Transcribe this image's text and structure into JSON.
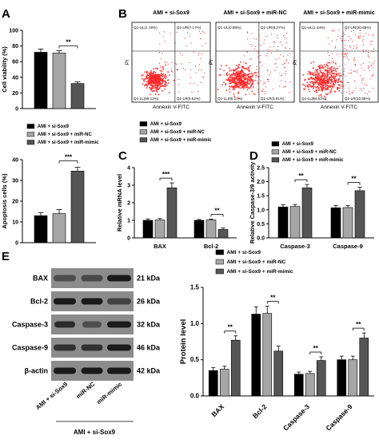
{
  "colors": {
    "black": "#000000",
    "gray": "#a6a6a6",
    "dark": "#555555",
    "flow": "#ff2a2a",
    "band": "#1a1a1a",
    "blot_bg": "#8c8c8c"
  },
  "legend_labels": [
    "AMI + si-Sox9",
    "AMI + si-Sox9 + miR-NC",
    "AMI + si-Sox9 + miR-mimic"
  ],
  "panels": {
    "A1": {
      "letter": "A",
      "chart_data": {
        "type": "bar",
        "ylabel": "Cell viability (%)",
        "ylim": [
          0,
          100
        ],
        "yticks": [
          0,
          20,
          40,
          60,
          80,
          100
        ],
        "series": [
          {
            "name": "AMI + si-Sox9",
            "values": [
              72
            ],
            "err": [
              4
            ]
          },
          {
            "name": "AMI + si-Sox9 + miR-NC",
            "values": [
              71
            ],
            "err": [
              3
            ]
          },
          {
            "name": "AMI + si-Sox9 + miR-mimic",
            "values": [
              32
            ],
            "err": [
              2
            ]
          }
        ],
        "sig": [
          {
            "from": 1,
            "to": 2,
            "label": "**"
          }
        ]
      }
    },
    "A2": {
      "chart_data": {
        "type": "bar",
        "ylabel": "Apoptosis cells (%)",
        "ylim": [
          0,
          40
        ],
        "yticks": [
          0,
          10,
          20,
          30,
          40
        ],
        "series": [
          {
            "name": "AMI + si-Sox9",
            "values": [
              13
            ],
            "err": [
              1.5
            ]
          },
          {
            "name": "AMI + si-Sox9 + miR-NC",
            "values": [
              14
            ],
            "err": [
              2
            ]
          },
          {
            "name": "AMI + si-Sox9 + miR-mimic",
            "values": [
              34.5
            ],
            "err": [
              1.8
            ]
          }
        ],
        "sig": [
          {
            "from": 1,
            "to": 2,
            "label": "***"
          }
        ]
      }
    },
    "B": {
      "letter": "B",
      "xlabel": "Annexin V-FITC",
      "ylabel": "PI",
      "titles": [
        "AMI + si-Sox9",
        "AMI + si-Sox9 + miR-NC",
        "AMI + si-Sox9 + miR-mimic"
      ],
      "quadrants": [
        {
          "ul": "Q1-UL(1.19%)",
          "ur": "Q1-UR(7.17%)",
          "ll": "Q1-LL(86.12%)",
          "lr": "Q1-LR(5.52%)"
        },
        {
          "ul": "Q1-UL(0.98%)",
          "ur": "Q1-UR(8.27%)",
          "ll": "Q1-LL(85.14%)",
          "lr": "Q1-LR(5.61%)"
        },
        {
          "ul": "Q1-UL(1.44%)",
          "ur": "Q1-UR(20.65%)",
          "ll": "Q1-LL(64.52%)",
          "lr": "Q1-LR(10.85%)"
        }
      ]
    },
    "C": {
      "letter": "C",
      "chart_data": {
        "type": "bar",
        "ylabel": "Relative mRNA level",
        "ylim": [
          0,
          4
        ],
        "yticks": [
          0,
          1,
          2,
          3,
          4
        ],
        "categories": [
          "BAX",
          "Bcl-2"
        ],
        "series": [
          {
            "name": "AMI + si-Sox9",
            "values": [
              1.0,
              1.0
            ],
            "err": [
              0.08,
              0.05
            ]
          },
          {
            "name": "AMI + si-Sox9 + miR-NC",
            "values": [
              1.02,
              1.02
            ],
            "err": [
              0.08,
              0.05
            ]
          },
          {
            "name": "AMI + si-Sox9 + miR-mimic",
            "values": [
              2.85,
              0.48
            ],
            "err": [
              0.28,
              0.08
            ]
          }
        ],
        "sig": [
          {
            "cat": 0,
            "label": "***"
          },
          {
            "cat": 1,
            "label": "**"
          }
        ]
      }
    },
    "D": {
      "letter": "D",
      "chart_data": {
        "type": "bar",
        "ylabel": "Relative Caspase-3/9 activity",
        "ylim": [
          0,
          2.5
        ],
        "yticks": [
          0.0,
          0.5,
          1.0,
          1.5,
          2.0,
          2.5
        ],
        "categories": [
          "Caspase-3",
          "Caspase-9"
        ],
        "series": [
          {
            "name": "AMI + si-Sox9",
            "values": [
              1.1,
              1.07
            ],
            "err": [
              0.08,
              0.08
            ]
          },
          {
            "name": "AMI + si-Sox9 + miR-NC",
            "values": [
              1.12,
              1.08
            ],
            "err": [
              0.07,
              0.07
            ]
          },
          {
            "name": "AMI + si-Sox9 + miR-mimic",
            "values": [
              1.78,
              1.68
            ],
            "err": [
              0.12,
              0.12
            ]
          }
        ],
        "sig": [
          {
            "cat": 0,
            "label": "**"
          },
          {
            "cat": 1,
            "label": "**"
          }
        ]
      }
    },
    "E": {
      "letter": "E",
      "blot_rows": [
        {
          "label": "BAX",
          "kda": "21 kDa"
        },
        {
          "label": "Bcl-2",
          "kda": "26 kDa"
        },
        {
          "label": "Caspase-3",
          "kda": "32 kDa"
        },
        {
          "label": "Caspase-9",
          "kda": "46 kDa"
        },
        {
          "label": "β-actin",
          "kda": "42 kDa"
        }
      ],
      "lane_labels": [
        "AMI + si-Sox9",
        "miR-NC",
        "miR-mimic"
      ],
      "group_label": "AMI + si-Sox9",
      "chart_data": {
        "type": "bar",
        "ylabel": "Protein level",
        "ylim": [
          0,
          1.5
        ],
        "yticks": [
          0.0,
          0.5,
          1.0,
          1.5
        ],
        "categories": [
          "BAX",
          "Bcl-2",
          "Caspase-3",
          "Caspase-9"
        ],
        "series": [
          {
            "name": "AMI + si-Sox9",
            "values": [
              0.35,
              1.13,
              0.3,
              0.5
            ],
            "err": [
              0.04,
              0.1,
              0.03,
              0.05
            ]
          },
          {
            "name": "AMI + si-Sox9 + miR-NC",
            "values": [
              0.37,
              1.14,
              0.31,
              0.5
            ],
            "err": [
              0.04,
              0.1,
              0.03,
              0.05
            ]
          },
          {
            "name": "AMI + si-Sox9 + miR-mimic",
            "values": [
              0.77,
              0.62,
              0.49,
              0.8
            ],
            "err": [
              0.06,
              0.07,
              0.05,
              0.07
            ]
          }
        ],
        "sig": [
          {
            "cat": 0,
            "label": "**"
          },
          {
            "cat": 1,
            "label": "**"
          },
          {
            "cat": 2,
            "label": "**"
          },
          {
            "cat": 3,
            "label": "**"
          }
        ]
      }
    }
  }
}
